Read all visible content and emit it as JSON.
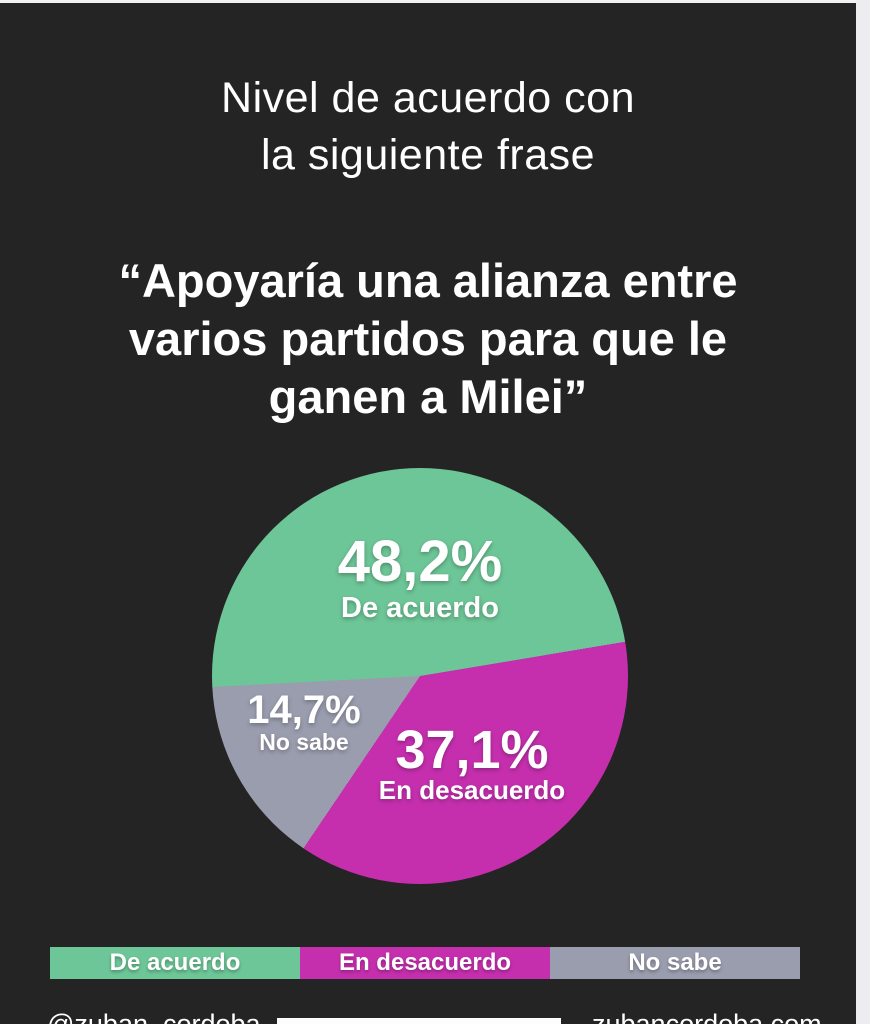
{
  "canvas": {
    "background": "#242424",
    "top_strip_color": "#f2f2f4",
    "right_strip_color": "#ededf0"
  },
  "header": {
    "title_line1": "Nivel de acuerdo con",
    "title_line2": "la siguiente frase"
  },
  "quote": {
    "line1": "“Apoyaría una alianza entre",
    "line2": "varios partidos para que le",
    "line3": "ganen a Milei”"
  },
  "chart_data": {
    "type": "pie",
    "title": "Nivel de acuerdo con la siguiente frase",
    "question": "“Apoyaría una alianza entre varios partidos para que le ganen a Milei”",
    "start_angle_deg": 267,
    "legend_position": "bottom",
    "slices": [
      {
        "label": "De acuerdo",
        "value": 48.2,
        "display": "48,2%",
        "color": "#6dc697"
      },
      {
        "label": "En desacuerdo",
        "value": 37.1,
        "display": "37,1%",
        "color": "#c52fae"
      },
      {
        "label": "No sabe",
        "value": 14.7,
        "display": "14,7%",
        "color": "#9a9dae"
      }
    ]
  },
  "footer": {
    "handle": "@zuban_cordoba",
    "website": "zubancordoba.com"
  }
}
